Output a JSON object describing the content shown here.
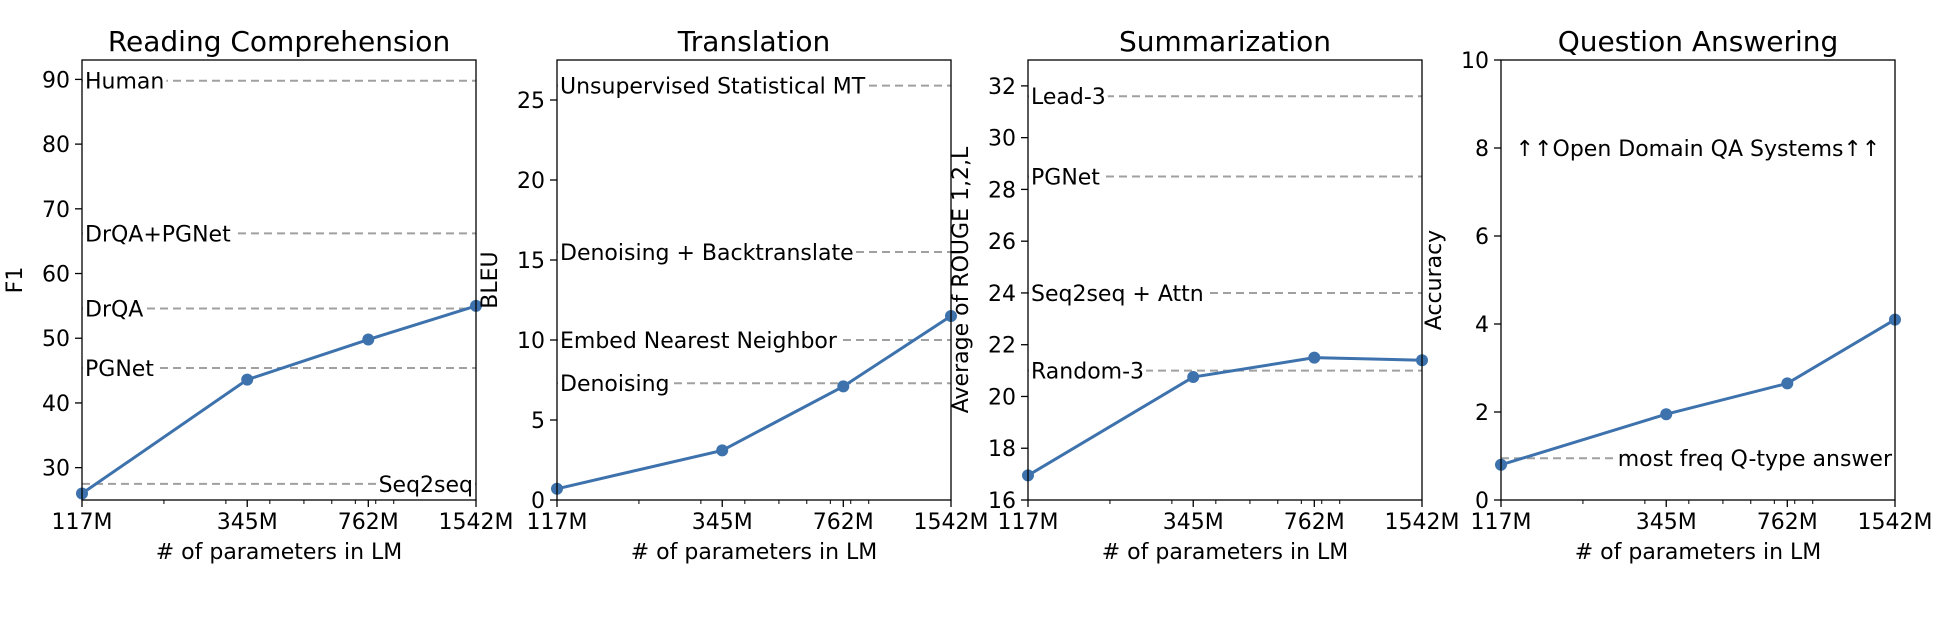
{
  "chart_data": [
    {
      "type": "line",
      "title": "Reading Comprehension",
      "xlabel": "# of parameters in LM",
      "ylabel": "F1",
      "x_scale": "log",
      "x": [
        117,
        345,
        762,
        1542
      ],
      "x_tick_labels": [
        "117M",
        "345M",
        "762M",
        "1542M"
      ],
      "ylim": [
        25,
        93
      ],
      "y_ticks": [
        30,
        40,
        50,
        60,
        70,
        80,
        90
      ],
      "series": [
        {
          "values": [
            26,
            43.6,
            49.8,
            55
          ],
          "color": "#3d72ad"
        }
      ],
      "reference_lines": [
        {
          "label": "Human",
          "value": 89.8,
          "label_side": "left"
        },
        {
          "label": "DrQA+PGNet",
          "value": 66.2,
          "label_side": "left"
        },
        {
          "label": "DrQA",
          "value": 54.6,
          "label_side": "left"
        },
        {
          "label": "PGNet",
          "value": 45.4,
          "label_side": "left"
        },
        {
          "label": "Seq2seq",
          "value": 27.5,
          "label_side": "right"
        }
      ]
    },
    {
      "type": "line",
      "title": "Translation",
      "xlabel": "# of parameters in LM",
      "ylabel": "BLEU",
      "x_scale": "log",
      "x": [
        117,
        345,
        762,
        1542
      ],
      "x_tick_labels": [
        "117M",
        "345M",
        "762M",
        "1542M"
      ],
      "ylim": [
        0,
        27.5
      ],
      "y_ticks": [
        0,
        5,
        10,
        15,
        20,
        25
      ],
      "series": [
        {
          "values": [
            0.7,
            3.1,
            7.1,
            11.5
          ],
          "color": "#3d72ad"
        }
      ],
      "reference_lines": [
        {
          "label": "Unsupervised Statistical MT",
          "value": 25.9,
          "label_side": "left"
        },
        {
          "label": "Denoising + Backtranslate",
          "value": 15.5,
          "label_side": "left"
        },
        {
          "label": "Embed Nearest Neighbor",
          "value": 10.0,
          "label_side": "left"
        },
        {
          "label": "Denoising",
          "value": 7.3,
          "label_side": "left"
        }
      ]
    },
    {
      "type": "line",
      "title": "Summarization",
      "xlabel": "# of parameters in LM",
      "ylabel": "Average of ROUGE 1,2,L",
      "x_scale": "log",
      "x": [
        117,
        345,
        762,
        1542
      ],
      "x_tick_labels": [
        "117M",
        "345M",
        "762M",
        "1542M"
      ],
      "ylim": [
        16,
        33
      ],
      "y_ticks": [
        16,
        18,
        20,
        22,
        24,
        26,
        28,
        30,
        32
      ],
      "series": [
        {
          "values": [
            16.95,
            20.75,
            21.5,
            21.4
          ],
          "color": "#3d72ad"
        }
      ],
      "reference_lines": [
        {
          "label": "Lead-3",
          "value": 31.6,
          "label_side": "left"
        },
        {
          "label": "PGNet",
          "value": 28.5,
          "label_side": "left"
        },
        {
          "label": "Seq2seq + Attn",
          "value": 24.0,
          "label_side": "left"
        },
        {
          "label": "Random-3",
          "value": 21.0,
          "label_side": "left"
        }
      ]
    },
    {
      "type": "line",
      "title": "Question Answering",
      "xlabel": "# of parameters in LM",
      "ylabel": "Accuracy",
      "x_scale": "log",
      "x": [
        117,
        345,
        762,
        1542
      ],
      "x_tick_labels": [
        "117M",
        "345M",
        "762M",
        "1542M"
      ],
      "ylim": [
        0,
        10
      ],
      "y_ticks": [
        0,
        2,
        4,
        6,
        8,
        10
      ],
      "series": [
        {
          "values": [
            0.8,
            1.95,
            2.65,
            4.1
          ],
          "color": "#3d72ad"
        }
      ],
      "reference_lines": [
        {
          "label": "most freq Q-type answer",
          "value": 0.95,
          "label_side": "right"
        }
      ],
      "annotations": [
        {
          "text": "↑↑Open Domain QA Systems↑↑",
          "x_frac": 0.5,
          "y": 8.0
        }
      ]
    }
  ]
}
